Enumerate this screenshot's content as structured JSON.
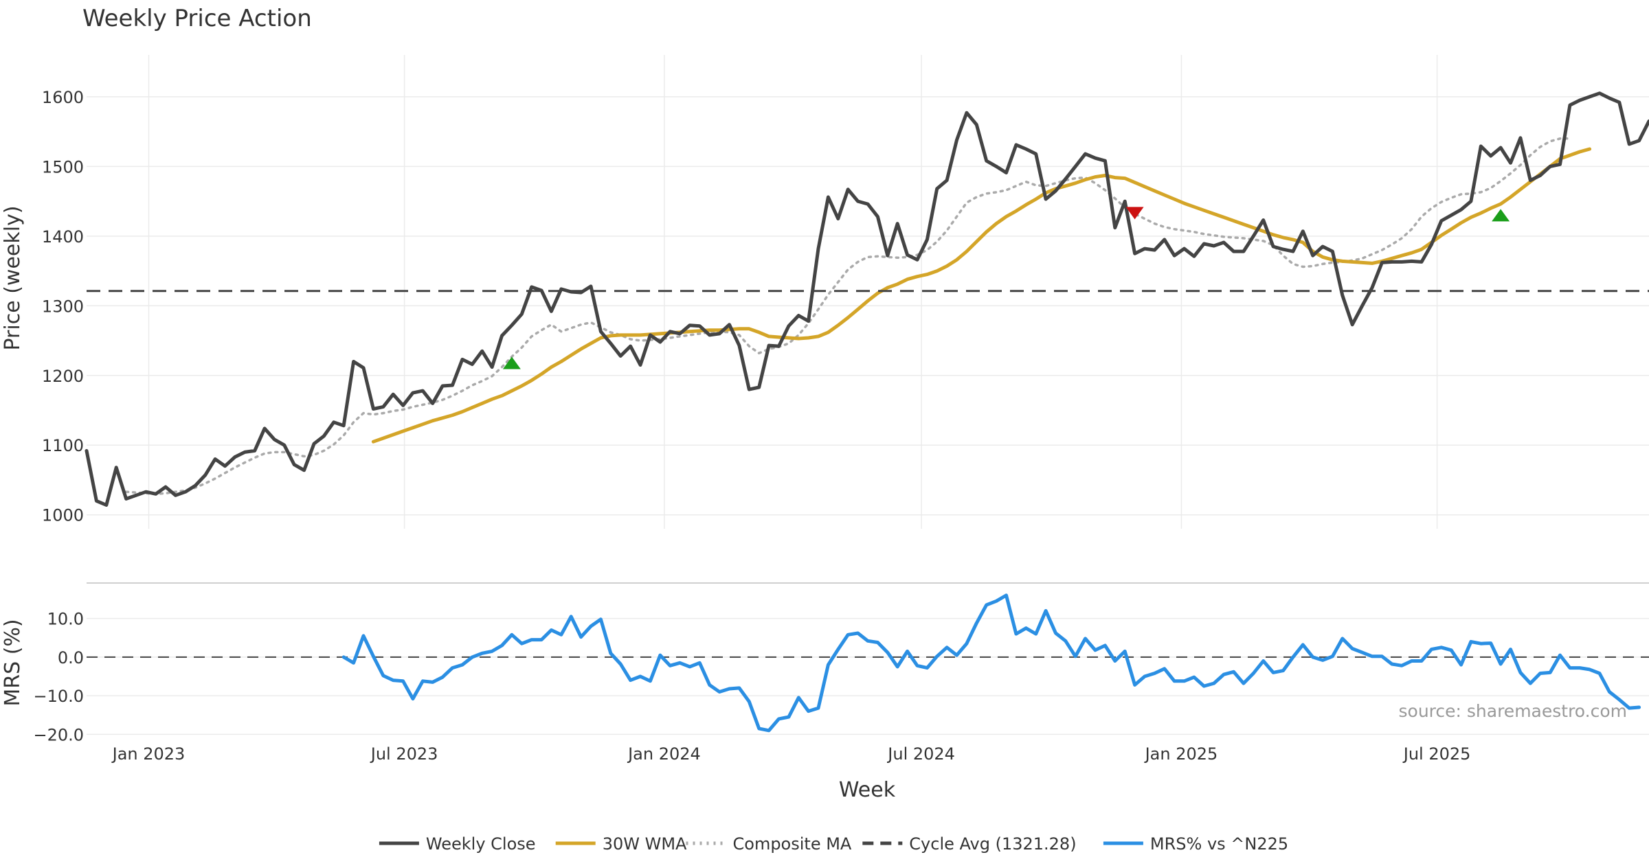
{
  "chart_data": [
    {
      "type": "line",
      "title": "Weekly Price Action",
      "ylabel": "Price (weekly)",
      "xlabel": "",
      "ylim": [
        980,
        1660
      ],
      "yticks": [
        1000,
        1100,
        1200,
        1300,
        1400,
        1500,
        1600
      ],
      "x_start": "2022-11-18",
      "x_step_days": 7,
      "series": [
        {
          "name": "Weekly Close",
          "color": "#444444",
          "style": "solid",
          "values": [
            1092,
            1020,
            1014,
            1068,
            1023,
            1028,
            1033,
            1030,
            1040,
            1028,
            1033,
            1042,
            1057,
            1080,
            1070,
            1083,
            1090,
            1092,
            1124,
            1108,
            1100,
            1072,
            1064,
            1102,
            1113,
            1133,
            1128,
            1220,
            1211,
            1152,
            1155,
            1173,
            1157,
            1175,
            1178,
            1160,
            1185,
            1186,
            1223,
            1216,
            1235,
            1212,
            1257,
            1272,
            1288,
            1327,
            1322,
            1292,
            1324,
            1320,
            1319,
            1328,
            1263,
            1246,
            1228,
            1242,
            1215,
            1258,
            1248,
            1263,
            1260,
            1272,
            1271,
            1258,
            1260,
            1273,
            1243,
            1180,
            1183,
            1243,
            1242,
            1271,
            1286,
            1278,
            1382,
            1456,
            1425,
            1467,
            1450,
            1446,
            1428,
            1372,
            1418,
            1373,
            1366,
            1395,
            1468,
            1480,
            1538,
            1577,
            1560,
            1508,
            1500,
            1491,
            1531,
            1525,
            1518,
            1453,
            1465,
            1482,
            1500,
            1518,
            1512,
            1508,
            1412,
            1450,
            1375,
            1382,
            1380,
            1395,
            1372,
            1382,
            1371,
            1389,
            1386,
            1391,
            1378,
            1378,
            1400,
            1423,
            1385,
            1381,
            1378,
            1407,
            1372,
            1385,
            1378,
            1315,
            1273,
            1300,
            1326,
            1362,
            1363,
            1363,
            1364,
            1363,
            1388,
            1422,
            1430,
            1438,
            1450,
            1529,
            1515,
            1527,
            1505,
            1541,
            1480,
            1487,
            1500,
            1503,
            1588,
            1595,
            1600,
            1605,
            1598,
            1592,
            1532,
            1537,
            1565
          ]
        },
        {
          "name": "30W WMA",
          "color": "#d4a528",
          "style": "solid",
          "start_index": 29,
          "values": [
            1105,
            1110,
            1115,
            1120,
            1125,
            1130,
            1135,
            1139,
            1143,
            1148,
            1154,
            1160,
            1166,
            1171,
            1178,
            1185,
            1193,
            1202,
            1212,
            1220,
            1229,
            1238,
            1246,
            1254,
            1257,
            1258,
            1258,
            1258,
            1259,
            1260,
            1261,
            1262,
            1263,
            1264,
            1265,
            1265,
            1266,
            1267,
            1267,
            1262,
            1256,
            1255,
            1254,
            1253,
            1254,
            1256,
            1262,
            1272,
            1283,
            1295,
            1307,
            1318,
            1326,
            1331,
            1338,
            1342,
            1345,
            1350,
            1357,
            1366,
            1378,
            1392,
            1406,
            1418,
            1428,
            1436,
            1445,
            1453,
            1462,
            1468,
            1472,
            1476,
            1481,
            1485,
            1487,
            1484,
            1483,
            1477,
            1471,
            1465,
            1459,
            1453,
            1447,
            1442,
            1437,
            1432,
            1427,
            1422,
            1417,
            1412,
            1407,
            1402,
            1398,
            1395,
            1391,
            1378,
            1370,
            1366,
            1364,
            1363,
            1362,
            1361,
            1364,
            1368,
            1372,
            1376,
            1381,
            1391,
            1401,
            1410,
            1419,
            1427,
            1433,
            1440,
            1446,
            1456,
            1467,
            1478,
            1489,
            1500,
            1511,
            1516,
            1521,
            1525
          ]
        },
        {
          "name": "Composite MA",
          "color": "#aaaaaa",
          "style": "dotted",
          "start_index": 4,
          "values": [
            1033,
            1032,
            1031,
            1030,
            1031,
            1033,
            1035,
            1039,
            1045,
            1052,
            1060,
            1068,
            1075,
            1082,
            1088,
            1090,
            1090,
            1087,
            1084,
            1086,
            1092,
            1101,
            1114,
            1133,
            1146,
            1144,
            1146,
            1149,
            1151,
            1155,
            1158,
            1161,
            1165,
            1171,
            1178,
            1186,
            1192,
            1199,
            1212,
            1227,
            1240,
            1256,
            1265,
            1273,
            1263,
            1268,
            1273,
            1276,
            1269,
            1262,
            1258,
            1252,
            1250,
            1251,
            1252,
            1254,
            1256,
            1258,
            1260,
            1262,
            1263,
            1262,
            1258,
            1242,
            1232,
            1238,
            1241,
            1246,
            1258,
            1275,
            1295,
            1316,
            1334,
            1352,
            1363,
            1370,
            1371,
            1370,
            1369,
            1370,
            1373,
            1380,
            1392,
            1408,
            1428,
            1448,
            1456,
            1461,
            1463,
            1466,
            1472,
            1478,
            1473,
            1472,
            1476,
            1480,
            1483,
            1484,
            1476,
            1466,
            1454,
            1441,
            1432,
            1425,
            1418,
            1413,
            1410,
            1408,
            1406,
            1403,
            1401,
            1399,
            1398,
            1397,
            1395,
            1393,
            1387,
            1372,
            1360,
            1356,
            1357,
            1360,
            1362,
            1363,
            1365,
            1368,
            1374,
            1380,
            1388,
            1397,
            1410,
            1428,
            1440,
            1449,
            1455,
            1460,
            1461,
            1463,
            1469,
            1479,
            1490,
            1502,
            1516,
            1528,
            1536,
            1540,
            1540
          ]
        },
        {
          "name": "Cycle Avg (1321.28)",
          "color": "#444444",
          "style": "dashed",
          "value": 1321.28
        }
      ],
      "markers": [
        {
          "type": "buy",
          "shape": "triangle-up",
          "color": "#1a9e1a",
          "index": 43,
          "value": 1218
        },
        {
          "type": "sell",
          "shape": "triangle-down",
          "color": "#cc1111",
          "index": 106,
          "value": 1433
        },
        {
          "type": "buy",
          "shape": "triangle-up",
          "color": "#1a9e1a",
          "index": 143,
          "value": 1430
        }
      ]
    },
    {
      "type": "line",
      "title": "",
      "ylabel": "MRS (%)",
      "xlabel": "Week",
      "ylim": [
        -21,
        19
      ],
      "yticks": [
        -20.0,
        -10.0,
        0.0,
        10.0
      ],
      "ytick_labels": [
        "−20.0",
        "−10.0",
        "0.0",
        "10.0"
      ],
      "zero_line": 0.0,
      "series": [
        {
          "name": "MRS% vs ^N225",
          "color": "#2b8fe3",
          "style": "solid",
          "start_index": 26,
          "values": [
            0.0,
            -1.5,
            5.5,
            0.2,
            -4.8,
            -6.0,
            -6.2,
            -10.8,
            -6.2,
            -6.5,
            -5.2,
            -2.8,
            -2.0,
            0.0,
            1.0,
            1.5,
            3.0,
            5.8,
            3.5,
            4.5,
            4.5,
            7.0,
            5.8,
            10.5,
            5.2,
            8.0,
            9.8,
            1.0,
            -1.8,
            -6.0,
            -5.0,
            -6.2,
            0.5,
            -2.2,
            -1.5,
            -2.5,
            -1.5,
            -7.2,
            -9.0,
            -8.2,
            -8.0,
            -11.5,
            -18.5,
            -19.0,
            -16.0,
            -15.5,
            -10.5,
            -14.0,
            -13.2,
            -2.0,
            2.0,
            5.8,
            6.2,
            4.2,
            3.8,
            1.2,
            -2.5,
            1.5,
            -2.2,
            -2.8,
            0.2,
            2.5,
            0.5,
            3.5,
            8.8,
            13.5,
            14.5,
            16.0,
            6.0,
            7.5,
            6.0,
            12.0,
            6.2,
            4.2,
            0.2,
            4.8,
            1.8,
            3.0,
            -1.0,
            1.5,
            -7.2,
            -5.0,
            -4.2,
            -3.0,
            -6.2,
            -6.2,
            -5.2,
            -7.5,
            -6.8,
            -4.5,
            -3.8,
            -6.8,
            -4.2,
            -1.0,
            -4.0,
            -3.5,
            0.0,
            3.2,
            0.0,
            -0.8,
            0.2,
            4.8,
            2.2,
            1.2,
            0.2,
            0.2,
            -1.8,
            -2.2,
            -1.0,
            -1.0,
            2.0,
            2.5,
            1.8,
            -2.0,
            4.0,
            3.5,
            3.6,
            -1.8,
            2.0,
            -4.0,
            -6.8,
            -4.2,
            -4.0,
            0.5,
            -2.8,
            -2.8,
            -3.2,
            -4.2,
            -9.0,
            -11.0,
            -13.2,
            -13.0
          ]
        }
      ],
      "x_tick_labels": [
        {
          "label": "Jan 2023",
          "date": "2023-01-01"
        },
        {
          "label": "Jul 2023",
          "date": "2023-07-01"
        },
        {
          "label": "Jan 2024",
          "date": "2024-01-01"
        },
        {
          "label": "Jul 2024",
          "date": "2024-07-01"
        },
        {
          "label": "Jan 2025",
          "date": "2025-01-01"
        },
        {
          "label": "Jul 2025",
          "date": "2025-07-01"
        }
      ]
    }
  ],
  "source_text": "source: sharemaestro.com",
  "legend": [
    {
      "label": "Weekly Close",
      "color": "#444444",
      "style": "solid"
    },
    {
      "label": "30W WMA",
      "color": "#d4a528",
      "style": "solid"
    },
    {
      "label": "Composite MA",
      "color": "#aaaaaa",
      "style": "dotted"
    },
    {
      "label": "Cycle Avg (1321.28)",
      "color": "#444444",
      "style": "dashed"
    },
    {
      "label": "MRS% vs ^N225",
      "color": "#2b8fe3",
      "style": "solid"
    }
  ]
}
